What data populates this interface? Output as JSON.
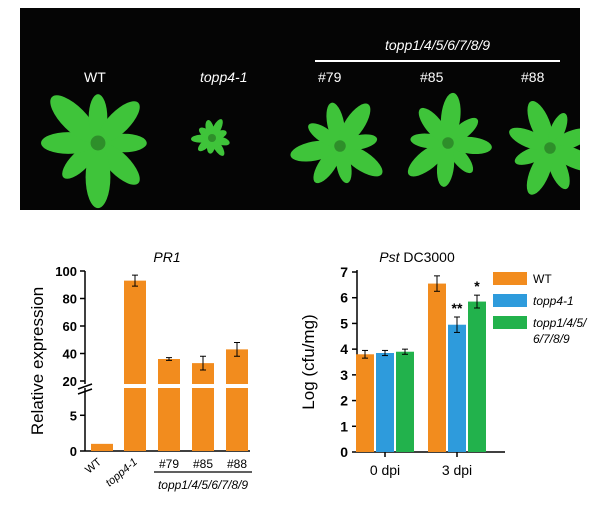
{
  "photo": {
    "group_label": "topp1/4/5/6/7/8/9",
    "plants": [
      {
        "label": "WT",
        "italic": false,
        "size": "large"
      },
      {
        "label": "topp4-1",
        "italic": true,
        "size": "small"
      },
      {
        "label": "#79",
        "italic": false,
        "size": "medium"
      },
      {
        "label": "#85",
        "italic": false,
        "size": "medium"
      },
      {
        "label": "#88",
        "italic": false,
        "size": "medium"
      }
    ]
  },
  "colors": {
    "orange": "#F28C1E",
    "blue": "#2E9BDC",
    "green": "#22B24C",
    "plant": "#3FC43A",
    "background": "#050505"
  },
  "chart_data": [
    {
      "type": "bar",
      "title": "PR1",
      "ylabel": "Relative expression",
      "categories": [
        "WT",
        "topp4-1",
        "#79",
        "#85",
        "#88"
      ],
      "group_label": "topp1/4/5/6/7/8/9",
      "values": [
        1,
        93,
        36,
        33,
        43
      ],
      "errors": [
        0.2,
        4,
        1,
        5,
        5
      ],
      "axis_break": {
        "lower_range": [
          0,
          7
        ],
        "upper_range": [
          20,
          100
        ]
      },
      "yticks_lower": [
        "0",
        "5"
      ],
      "yticks_upper": [
        "20",
        "40",
        "60",
        "80",
        "100"
      ],
      "color": "#F28C1E"
    },
    {
      "type": "bar",
      "title_italic": "Pst",
      "title_rest": "DC3000",
      "ylabel": "Log (cfu/mg)",
      "categories": [
        "0 dpi",
        "3 dpi"
      ],
      "ylim": [
        0,
        7
      ],
      "yticks": [
        "0",
        "1",
        "2",
        "3",
        "4",
        "5",
        "6",
        "7"
      ],
      "series": [
        {
          "name": "WT",
          "color": "#F28C1E",
          "values": [
            3.8,
            6.55
          ],
          "errors": [
            0.15,
            0.3
          ],
          "marks": [
            "",
            ""
          ]
        },
        {
          "name": "topp4-1",
          "color": "#2E9BDC",
          "values": [
            3.85,
            4.95
          ],
          "errors": [
            0.1,
            0.3
          ],
          "marks": [
            "",
            "**"
          ]
        },
        {
          "name": "topp1/4/5/6/7/8/9",
          "color": "#22B24C",
          "values": [
            3.9,
            5.85
          ],
          "errors": [
            0.1,
            0.25
          ],
          "marks": [
            "",
            "*"
          ]
        }
      ],
      "legend": {
        "position": "right",
        "entries": [
          {
            "lines": [
              "WT"
            ],
            "italic": false
          },
          {
            "lines": [
              "topp4-1"
            ],
            "italic": true
          },
          {
            "lines": [
              "topp1/4/5/",
              "6/7/8/9"
            ],
            "italic": true
          }
        ]
      }
    }
  ]
}
